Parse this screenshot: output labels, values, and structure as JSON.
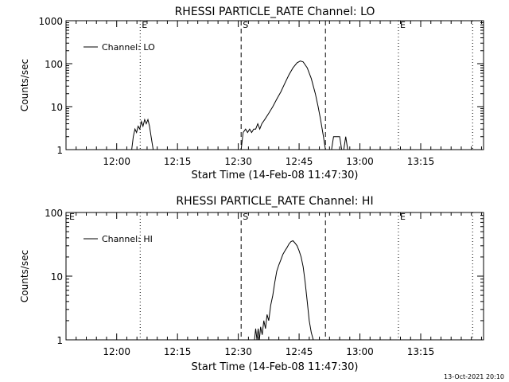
{
  "footer_timestamp": "13-Oct-2021 20:10",
  "chart_data": [
    {
      "type": "line",
      "title": "RHESSI PARTICLE_RATE Channel: LO",
      "xlabel": "Start Time (14-Feb-08 11:47:30)",
      "ylabel": "Counts/sec",
      "x_unit": "minutes since 11:47:30",
      "xlim": [
        0,
        103
      ],
      "yscale": "log",
      "ylim": [
        1,
        1000
      ],
      "x_ticks": [
        {
          "x": 12.5,
          "label": "12:00"
        },
        {
          "x": 27.5,
          "label": "12:15"
        },
        {
          "x": 42.5,
          "label": "12:30"
        },
        {
          "x": 57.5,
          "label": "12:45"
        },
        {
          "x": 72.5,
          "label": "13:00"
        },
        {
          "x": 87.5,
          "label": "13:15"
        }
      ],
      "y_ticks": [
        {
          "y": 1,
          "label": "1"
        },
        {
          "y": 10,
          "label": "10"
        },
        {
          "y": 100,
          "label": "100"
        },
        {
          "y": 1000,
          "label": "1000"
        }
      ],
      "legend": {
        "position": "top-left",
        "label": "Channel: LO"
      },
      "vlines": [
        {
          "x": 18.3,
          "style": "dotted",
          "label": "E"
        },
        {
          "x": 43.2,
          "style": "dashed",
          "label": "S"
        },
        {
          "x": 64.0,
          "style": "dashed",
          "label": ""
        },
        {
          "x": 82.0,
          "style": "dotted",
          "label": "E"
        },
        {
          "x": 100.3,
          "style": "dotted",
          "label": ""
        }
      ],
      "series": [
        {
          "name": "Channel: LO",
          "segments": [
            [
              [
                16.2,
                1
              ],
              [
                16.6,
                2
              ],
              [
                17.0,
                3
              ],
              [
                17.4,
                2.5
              ],
              [
                17.8,
                3.5
              ],
              [
                18.2,
                3
              ],
              [
                18.6,
                4.5
              ],
              [
                19.0,
                3.5
              ],
              [
                19.4,
                5
              ],
              [
                19.8,
                4
              ],
              [
                20.2,
                5
              ],
              [
                20.6,
                3.5
              ],
              [
                21.0,
                2
              ],
              [
                21.5,
                1
              ]
            ],
            [
              [
                43.2,
                1
              ],
              [
                43.7,
                2.5
              ],
              [
                44.3,
                3
              ],
              [
                44.8,
                2.5
              ],
              [
                45.3,
                3
              ],
              [
                45.8,
                2.5
              ],
              [
                46.3,
                3
              ],
              [
                46.8,
                3
              ],
              [
                47.3,
                4
              ],
              [
                47.8,
                3
              ],
              [
                48.3,
                4
              ],
              [
                49.0,
                5
              ],
              [
                50.0,
                7
              ],
              [
                51.0,
                10
              ],
              [
                52.0,
                15
              ],
              [
                53.0,
                22
              ],
              [
                54.0,
                35
              ],
              [
                55.0,
                55
              ],
              [
                56.0,
                80
              ],
              [
                57.0,
                105
              ],
              [
                57.8,
                115
              ],
              [
                58.5,
                110
              ],
              [
                59.5,
                80
              ],
              [
                60.5,
                45
              ],
              [
                61.5,
                20
              ],
              [
                62.2,
                10
              ],
              [
                62.8,
                5
              ],
              [
                63.5,
                2
              ],
              [
                64.0,
                1
              ]
            ],
            [
              [
                65.5,
                1
              ],
              [
                66.0,
                2
              ],
              [
                67.5,
                2
              ],
              [
                68.0,
                1
              ]
            ],
            [
              [
                68.5,
                1
              ],
              [
                69.0,
                2
              ],
              [
                69.5,
                1
              ]
            ]
          ]
        }
      ]
    },
    {
      "type": "line",
      "title": "RHESSI PARTICLE_RATE Channel: HI",
      "xlabel": "Start Time (14-Feb-08 11:47:30)",
      "ylabel": "Counts/sec",
      "x_unit": "minutes since 11:47:30",
      "xlim": [
        0,
        103
      ],
      "yscale": "log",
      "ylim": [
        1,
        100
      ],
      "x_ticks": [
        {
          "x": 12.5,
          "label": "12:00"
        },
        {
          "x": 27.5,
          "label": "12:15"
        },
        {
          "x": 42.5,
          "label": "12:30"
        },
        {
          "x": 57.5,
          "label": "12:45"
        },
        {
          "x": 72.5,
          "label": "13:00"
        },
        {
          "x": 87.5,
          "label": "13:15"
        }
      ],
      "y_ticks": [
        {
          "y": 1,
          "label": "1"
        },
        {
          "y": 10,
          "label": "10"
        },
        {
          "y": 100,
          "label": "100"
        }
      ],
      "legend": {
        "position": "top-left",
        "label": "Channel: HI"
      },
      "vlines": [
        {
          "x": 0.4,
          "style": "none",
          "label": "E"
        },
        {
          "x": 18.3,
          "style": "dotted",
          "label": ""
        },
        {
          "x": 43.2,
          "style": "dashed",
          "label": "S"
        },
        {
          "x": 64.0,
          "style": "dashed",
          "label": ""
        },
        {
          "x": 82.0,
          "style": "dotted",
          "label": "E"
        },
        {
          "x": 100.3,
          "style": "dotted",
          "label": ""
        }
      ],
      "series": [
        {
          "name": "Channel: HI",
          "segments": [
            [
              [
                46.5,
                1
              ],
              [
                46.8,
                1.5
              ],
              [
                47.1,
                1
              ],
              [
                47.4,
                1.5
              ],
              [
                47.7,
                1
              ],
              [
                48.0,
                1.6
              ],
              [
                48.4,
                1.2
              ],
              [
                48.8,
                2
              ],
              [
                49.2,
                1.5
              ],
              [
                49.6,
                2.5
              ],
              [
                50.0,
                2
              ],
              [
                50.5,
                3.5
              ],
              [
                51.0,
                5
              ],
              [
                51.5,
                8
              ],
              [
                52.0,
                12
              ],
              [
                52.5,
                15
              ],
              [
                53.0,
                18
              ],
              [
                53.5,
                22
              ],
              [
                54.0,
                25
              ],
              [
                54.5,
                28
              ],
              [
                55.0,
                32
              ],
              [
                55.5,
                35
              ],
              [
                56.0,
                36
              ],
              [
                56.5,
                33
              ],
              [
                57.0,
                30
              ],
              [
                57.5,
                25
              ],
              [
                58.0,
                20
              ],
              [
                58.5,
                14
              ],
              [
                59.0,
                8
              ],
              [
                59.5,
                4
              ],
              [
                60.0,
                2
              ],
              [
                60.5,
                1.3
              ],
              [
                61.0,
                1
              ]
            ]
          ]
        }
      ]
    }
  ]
}
